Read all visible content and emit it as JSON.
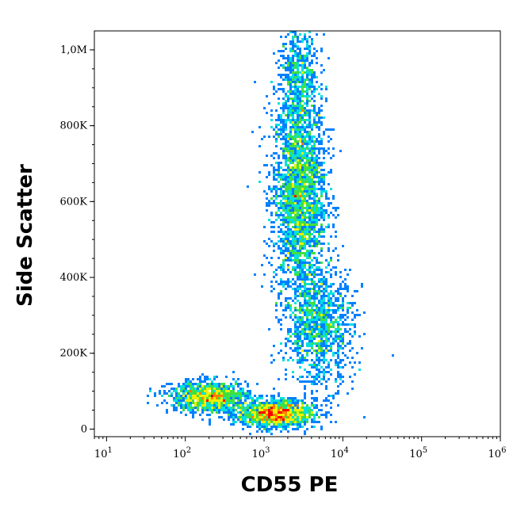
{
  "chart_data": {
    "type": "scatter",
    "title": "",
    "xlabel": "CD55 PE",
    "ylabel": "Side Scatter",
    "x_scale": "log",
    "xlim": [
      7,
      1000000
    ],
    "ylim": [
      -20000,
      1050000
    ],
    "x_ticks": [
      {
        "value": 10,
        "base": "10",
        "exp": "1"
      },
      {
        "value": 100,
        "base": "10",
        "exp": "2"
      },
      {
        "value": 1000,
        "base": "10",
        "exp": "3"
      },
      {
        "value": 10000,
        "base": "10",
        "exp": "4"
      },
      {
        "value": 100000,
        "base": "10",
        "exp": "5"
      },
      {
        "value": 1000000,
        "base": "10",
        "exp": "6"
      }
    ],
    "y_ticks": [
      {
        "value": 0,
        "label": "0"
      },
      {
        "value": 200000,
        "label": "200K"
      },
      {
        "value": 400000,
        "label": "400K"
      },
      {
        "value": 600000,
        "label": "600K"
      },
      {
        "value": 800000,
        "label": "800K"
      },
      {
        "value": 1000000,
        "label": "1,0M"
      }
    ],
    "density_colormap": [
      "#0000cc",
      "#0080ff",
      "#00e0e0",
      "#40e040",
      "#f0f000",
      "#ff8000",
      "#ff0000"
    ],
    "populations": [
      {
        "x_center": 2800,
        "y_center": 620000,
        "x_spread_log10": 0.17,
        "y_spread": 140000,
        "weight": 0.38
      },
      {
        "x_center": 2800,
        "y_center": 930000,
        "x_spread_log10": 0.13,
        "y_spread": 80000,
        "weight": 0.08
      },
      {
        "x_center": 5000,
        "y_center": 270000,
        "x_spread_log10": 0.22,
        "y_spread": 80000,
        "weight": 0.17
      },
      {
        "x_center": 200,
        "y_center": 85000,
        "x_spread_log10": 0.25,
        "y_spread": 20000,
        "weight": 0.16
      },
      {
        "x_center": 1400,
        "y_center": 40000,
        "x_spread_log10": 0.25,
        "y_spread": 18000,
        "weight": 0.21
      }
    ]
  },
  "axes": {
    "xlabel": "CD55 PE",
    "ylabel": "Side Scatter"
  }
}
